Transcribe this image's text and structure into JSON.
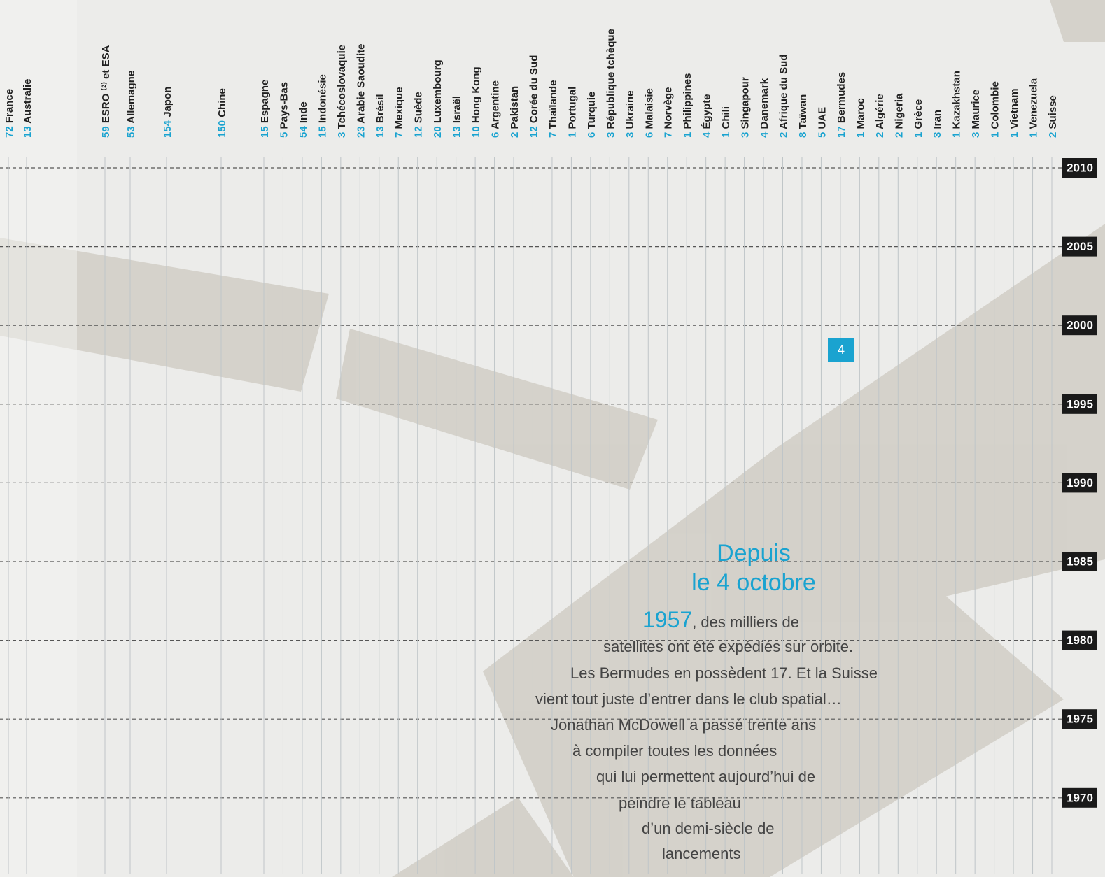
{
  "columns": [
    {
      "count": 72,
      "name": "France"
    },
    {
      "count": 13,
      "name": "Australie"
    },
    {
      "count": 59,
      "name": "ESRO ⁽²⁾ et ESA"
    },
    {
      "count": 53,
      "name": "Allemagne"
    },
    {
      "count": 154,
      "name": "Japon"
    },
    {
      "count": 150,
      "name": "Chine"
    },
    {
      "count": 15,
      "name": "Espagne"
    },
    {
      "count": 5,
      "name": "Pays-Bas"
    },
    {
      "count": 54,
      "name": "Inde"
    },
    {
      "count": 15,
      "name": "Indonésie"
    },
    {
      "count": 3,
      "name": "Tchécoslovaquie"
    },
    {
      "count": 23,
      "name": "Arabie Saoudite"
    },
    {
      "count": 13,
      "name": "Brésil"
    },
    {
      "count": 7,
      "name": "Mexique"
    },
    {
      "count": 12,
      "name": "Suède"
    },
    {
      "count": 20,
      "name": "Luxembourg"
    },
    {
      "count": 13,
      "name": "Israël"
    },
    {
      "count": 10,
      "name": "Hong Kong"
    },
    {
      "count": 6,
      "name": "Argentine"
    },
    {
      "count": 2,
      "name": "Pakistan"
    },
    {
      "count": 12,
      "name": "Corée du Sud"
    },
    {
      "count": 7,
      "name": "Thaïlande"
    },
    {
      "count": 1,
      "name": "Portugal"
    },
    {
      "count": 6,
      "name": "Turquie"
    },
    {
      "count": 3,
      "name": "République tchèque"
    },
    {
      "count": 3,
      "name": "Ukraine"
    },
    {
      "count": 6,
      "name": "Malaisie"
    },
    {
      "count": 7,
      "name": "Norvège"
    },
    {
      "count": 1,
      "name": "Philippines"
    },
    {
      "count": 4,
      "name": "Égypte"
    },
    {
      "count": 1,
      "name": "Chili"
    },
    {
      "count": 3,
      "name": "Singapour"
    },
    {
      "count": 4,
      "name": "Danemark"
    },
    {
      "count": 2,
      "name": "Afrique du Sud"
    },
    {
      "count": 8,
      "name": "Taïwan"
    },
    {
      "count": 5,
      "name": "UAE"
    },
    {
      "count": 17,
      "name": "Bermudes"
    },
    {
      "count": 1,
      "name": "Maroc"
    },
    {
      "count": 2,
      "name": "Algérie"
    },
    {
      "count": 2,
      "name": "Nigeria"
    },
    {
      "count": 1,
      "name": "Grèce"
    },
    {
      "count": 3,
      "name": "Iran"
    },
    {
      "count": 1,
      "name": "Kazakhstan"
    },
    {
      "count": 3,
      "name": "Maurice"
    },
    {
      "count": 1,
      "name": "Colombie"
    },
    {
      "count": 1,
      "name": "Vietnam"
    },
    {
      "count": 1,
      "name": "Venezuela"
    },
    {
      "count": 2,
      "name": "Suisse"
    }
  ],
  "years": [
    2010,
    2005,
    2000,
    1995,
    1990,
    1985,
    1980,
    1975,
    1970
  ],
  "badge": "4",
  "text": {
    "heading": [
      "Depuis",
      "le 4 octobre"
    ],
    "lead": "1957",
    "lines": [
      ", des milliers de",
      "satellites ont été expédiés sur orbite.",
      "Les Bermudes en possèdent 17. Et la Suisse",
      "vient tout juste d’entrer dans le club spatial…",
      "Jonathan McDowell a passé trente ans",
      "à compiler toutes les données",
      "qui lui permettent aujourd’hui de",
      "peindre le tableau",
      "d’un demi-siècle de",
      "lancements"
    ]
  }
}
